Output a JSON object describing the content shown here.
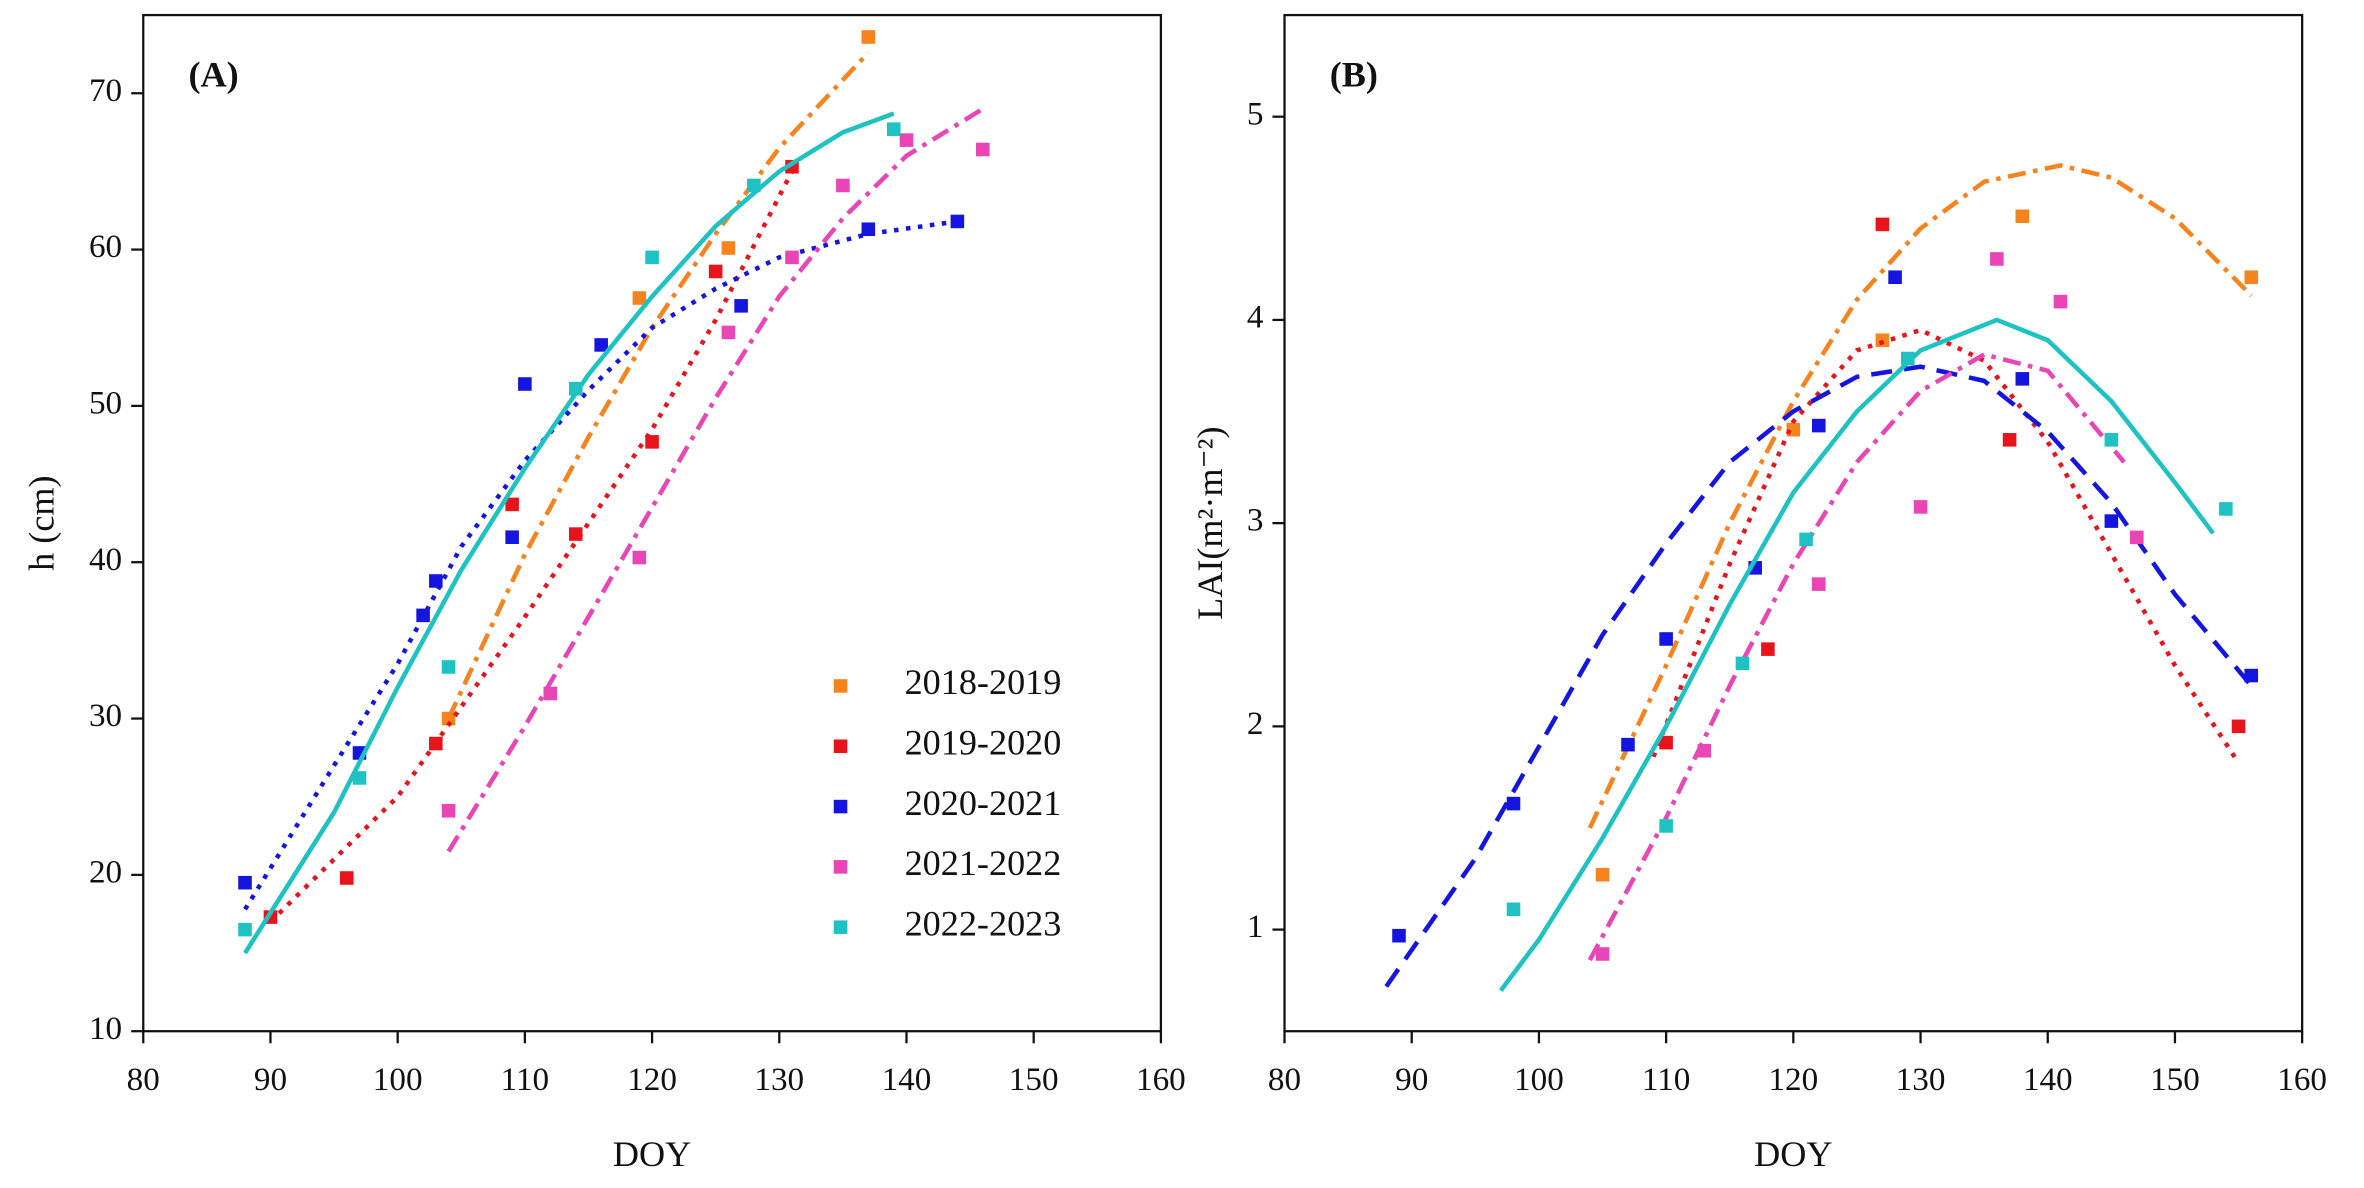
{
  "chart_data": [
    {
      "type": "scatter",
      "label": "(A)",
      "xlabel": "DOY",
      "ylabel": "h (cm)",
      "xlim": [
        80,
        160
      ],
      "xticks": [
        80,
        90,
        100,
        110,
        120,
        130,
        140,
        150,
        160
      ],
      "ylim": [
        10,
        75
      ],
      "yticks": [
        10,
        20,
        30,
        40,
        50,
        60,
        70
      ],
      "legend": "lower right",
      "series": [
        {
          "name": "2018-2019",
          "color": "#f5841f",
          "x": [
            104,
            119,
            126,
            137
          ],
          "values": [
            30.0,
            56.9,
            60.1,
            73.6
          ],
          "fit": {
            "style": "dash-dot",
            "x": [
              104,
              110,
              115,
              120,
              125,
              130,
              137
            ],
            "values": [
              30,
              40.5,
              48,
              55,
              61,
              66.5,
              72.6
            ]
          }
        },
        {
          "name": "2019-2020",
          "color": "#e8141b",
          "x": [
            90,
            96,
            103,
            109,
            114,
            120,
            125,
            131
          ],
          "values": [
            17.3,
            19.8,
            28.4,
            43.7,
            41.8,
            47.7,
            58.6,
            65.3
          ],
          "fit": {
            "style": "dotted",
            "x": [
              90,
              100,
              110,
              120,
              125,
              131
            ],
            "values": [
              17,
              25,
              36.5,
              48.5,
              55.5,
              65
            ]
          }
        },
        {
          "name": "2020-2021",
          "color": "#1515e0",
          "x": [
            88,
            97,
            102,
            103,
            109,
            110,
            116,
            127,
            137,
            144
          ],
          "values": [
            19.5,
            27.8,
            36.6,
            38.8,
            41.6,
            51.4,
            53.9,
            56.4,
            61.3,
            61.8
          ],
          "fit": {
            "style": "dotted",
            "x": [
              88,
              95,
              100,
              105,
              110,
              115,
              120,
              125,
              130,
              137,
              144
            ],
            "values": [
              17.8,
              27,
              33.5,
              41,
              46.5,
              51,
              55,
              57.5,
              59.5,
              61,
              61.8
            ]
          }
        },
        {
          "name": "2021-2022",
          "color": "#e845b5",
          "x": [
            104,
            112,
            119,
            126,
            131,
            135,
            140,
            146
          ],
          "values": [
            24.1,
            31.6,
            40.3,
            54.7,
            59.5,
            64.1,
            67.0,
            66.4
          ],
          "fit": {
            "style": "dash-dot",
            "x": [
              104,
              110,
              115,
              120,
              125,
              130,
              135,
              140,
              146
            ],
            "values": [
              21.5,
              29.5,
              36.5,
              43.5,
              50.5,
              57,
              62,
              66,
              69
            ]
          }
        },
        {
          "name": "2022-2023",
          "color": "#1ec2c2",
          "x": [
            88,
            97,
            104,
            114,
            120,
            128,
            139
          ],
          "values": [
            16.5,
            26.2,
            33.3,
            51.1,
            59.5,
            64.1,
            67.7
          ],
          "fit": {
            "style": "solid",
            "x": [
              88,
              95,
              100,
              105,
              110,
              115,
              120,
              125,
              130,
              135,
              139
            ],
            "values": [
              15,
              24,
              32,
              39.5,
              46,
              52,
              57,
              61.5,
              65,
              67.5,
              68.7
            ]
          }
        }
      ]
    },
    {
      "type": "scatter",
      "label": "(B)",
      "xlabel": "DOY",
      "ylabel": "LAI(m²·m⁻²)",
      "xlim": [
        80,
        160
      ],
      "xticks": [
        80,
        90,
        100,
        110,
        120,
        130,
        140,
        150,
        160
      ],
      "ylim": [
        0.5,
        5.5
      ],
      "yticks": [
        1,
        2,
        3,
        4,
        5
      ],
      "series": [
        {
          "color": "#f5841f",
          "x": [
            105,
            120,
            127,
            138,
            156
          ],
          "values": [
            1.27,
            3.46,
            3.9,
            4.51,
            4.21
          ],
          "fit": {
            "style": "dash-dot",
            "x": [
              104,
              110,
              115,
              120,
              125,
              130,
              135,
              141,
              145,
              150,
              156
            ],
            "values": [
              1.5,
              2.3,
              3.0,
              3.6,
              4.1,
              4.45,
              4.68,
              4.76,
              4.7,
              4.5,
              4.12
            ]
          }
        },
        {
          "color": "#e8141b",
          "x": [
            110,
            118,
            127,
            137,
            155
          ],
          "values": [
            1.92,
            2.38,
            4.47,
            3.41,
            2.0
          ],
          "fit": {
            "style": "dotted",
            "x": [
              109,
              115,
              120,
              125,
              130,
              135,
              140,
              145,
              150,
              155
            ],
            "values": [
              1.85,
              2.8,
              3.5,
              3.85,
              3.95,
              3.8,
              3.4,
              2.85,
              2.3,
              1.82
            ]
          }
        },
        {
          "color": "#1515e0",
          "x": [
            89,
            98,
            107,
            110,
            117,
            122,
            128,
            138,
            145,
            156
          ],
          "values": [
            0.97,
            1.62,
            1.91,
            2.43,
            2.78,
            3.48,
            4.21,
            3.71,
            3.01,
            2.25
          ],
          "fit": {
            "style": "dashed",
            "x": [
              88,
              95,
              100,
              105,
              110,
              115,
              120,
              125,
              130,
              135,
              140,
              145,
              150,
              156
            ],
            "values": [
              0.72,
              1.35,
              1.9,
              2.45,
              2.9,
              3.3,
              3.55,
              3.72,
              3.77,
              3.7,
              3.45,
              3.1,
              2.65,
              2.2
            ]
          }
        },
        {
          "color": "#e845b5",
          "x": [
            105,
            113,
            122,
            130,
            136,
            141,
            147
          ],
          "values": [
            0.88,
            1.88,
            2.7,
            3.08,
            4.3,
            4.09,
            2.93
          ],
          "fit": {
            "style": "dash-dot",
            "x": [
              104,
              110,
              115,
              120,
              125,
              130,
              135,
              140,
              146
            ],
            "values": [
              0.85,
              1.55,
              2.2,
              2.8,
              3.3,
              3.65,
              3.83,
              3.75,
              3.3
            ]
          }
        },
        {
          "color": "#1ec2c2",
          "x": [
            98,
            110,
            116,
            121,
            129,
            145,
            154
          ],
          "values": [
            1.1,
            1.51,
            2.31,
            2.92,
            3.81,
            3.41,
            3.07
          ],
          "fit": {
            "style": "solid",
            "x": [
              97,
              100,
              105,
              110,
              115,
              120,
              125,
              130,
              136,
              140,
              145,
              150,
              153
            ],
            "values": [
              0.7,
              0.95,
              1.45,
              2.0,
              2.6,
              3.15,
              3.55,
              3.85,
              4.0,
              3.9,
              3.6,
              3.2,
              2.95
            ]
          }
        }
      ]
    }
  ]
}
